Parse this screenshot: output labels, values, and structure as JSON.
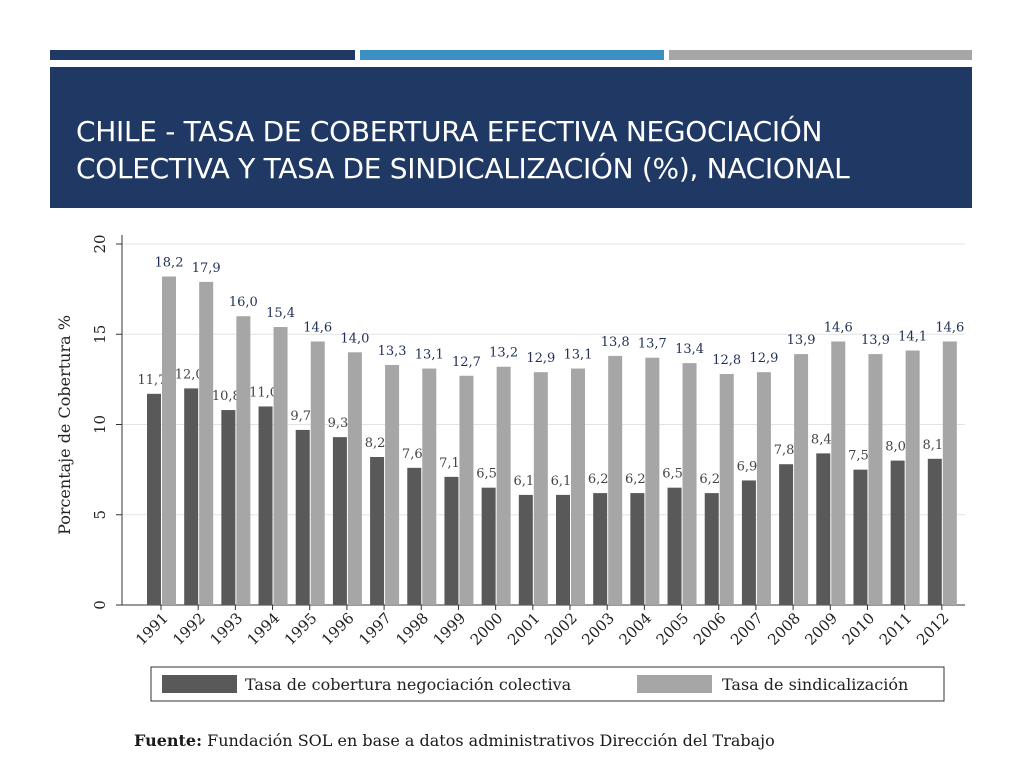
{
  "slide": {
    "title_line1": "CHILE - TASA DE COBERTURA EFECTIVA NEGOCIACIÓN",
    "title_line2": "COLECTIVA Y TASA DE SINDICALIZACIÓN (%), NACIONAL",
    "accent_colors": [
      "#1f3864",
      "#3a8fc3",
      "#a6a6a6"
    ],
    "banner_color": "#1f3864"
  },
  "source": {
    "label": "Fuente:",
    "text": "Fundación SOL en base a datos administrativos Dirección del Trabajo"
  },
  "chart_data": {
    "type": "bar",
    "title": "",
    "xlabel": "",
    "ylabel": "Porcentaje de Cobertura %",
    "ylim": [
      0,
      20
    ],
    "yticks": [
      0,
      5,
      10,
      15,
      20
    ],
    "grid": true,
    "legend_position": "bottom",
    "categories": [
      "1991",
      "1992",
      "1993",
      "1994",
      "1995",
      "1996",
      "1997",
      "1998",
      "1999",
      "2000",
      "2001",
      "2002",
      "2003",
      "2004",
      "2005",
      "2006",
      "2007",
      "2008",
      "2009",
      "2010",
      "2011",
      "2012"
    ],
    "series": [
      {
        "name": "Tasa de cobertura negociación colectiva",
        "color": "#595959",
        "values": [
          11.7,
          12.0,
          10.8,
          11.0,
          9.7,
          9.3,
          8.2,
          7.6,
          7.1,
          6.5,
          6.1,
          6.1,
          6.2,
          6.2,
          6.5,
          6.2,
          6.9,
          7.8,
          8.4,
          7.5,
          8.0,
          8.1
        ],
        "labels": [
          "11,7",
          "12,0",
          "10,8",
          "11,0",
          "9,7",
          "9,3",
          "8,2",
          "7,6",
          "7,1",
          "6,5",
          "6,1",
          "6,1",
          "6,2",
          "6,2",
          "6,5",
          "6,2",
          "6,9",
          "7,8",
          "8,4",
          "7,5",
          "8,0",
          "8,1"
        ]
      },
      {
        "name": "Tasa de sindicalización",
        "color": "#a6a6a6",
        "values": [
          18.2,
          17.9,
          16.0,
          15.4,
          14.6,
          14.0,
          13.3,
          13.1,
          12.7,
          13.2,
          12.9,
          13.1,
          13.8,
          13.7,
          13.4,
          12.8,
          12.9,
          13.9,
          14.6,
          13.9,
          14.1,
          14.6
        ],
        "labels": [
          "18,2",
          "17,9",
          "16,0",
          "15,4",
          "14,6",
          "14,0",
          "13,3",
          "13,1",
          "12,7",
          "13,2",
          "12,9",
          "13,1",
          "13,8",
          "13,7",
          "13,4",
          "12,8",
          "12,9",
          "13,9",
          "14,6",
          "13,9",
          "14,1",
          "14,6"
        ]
      }
    ]
  }
}
